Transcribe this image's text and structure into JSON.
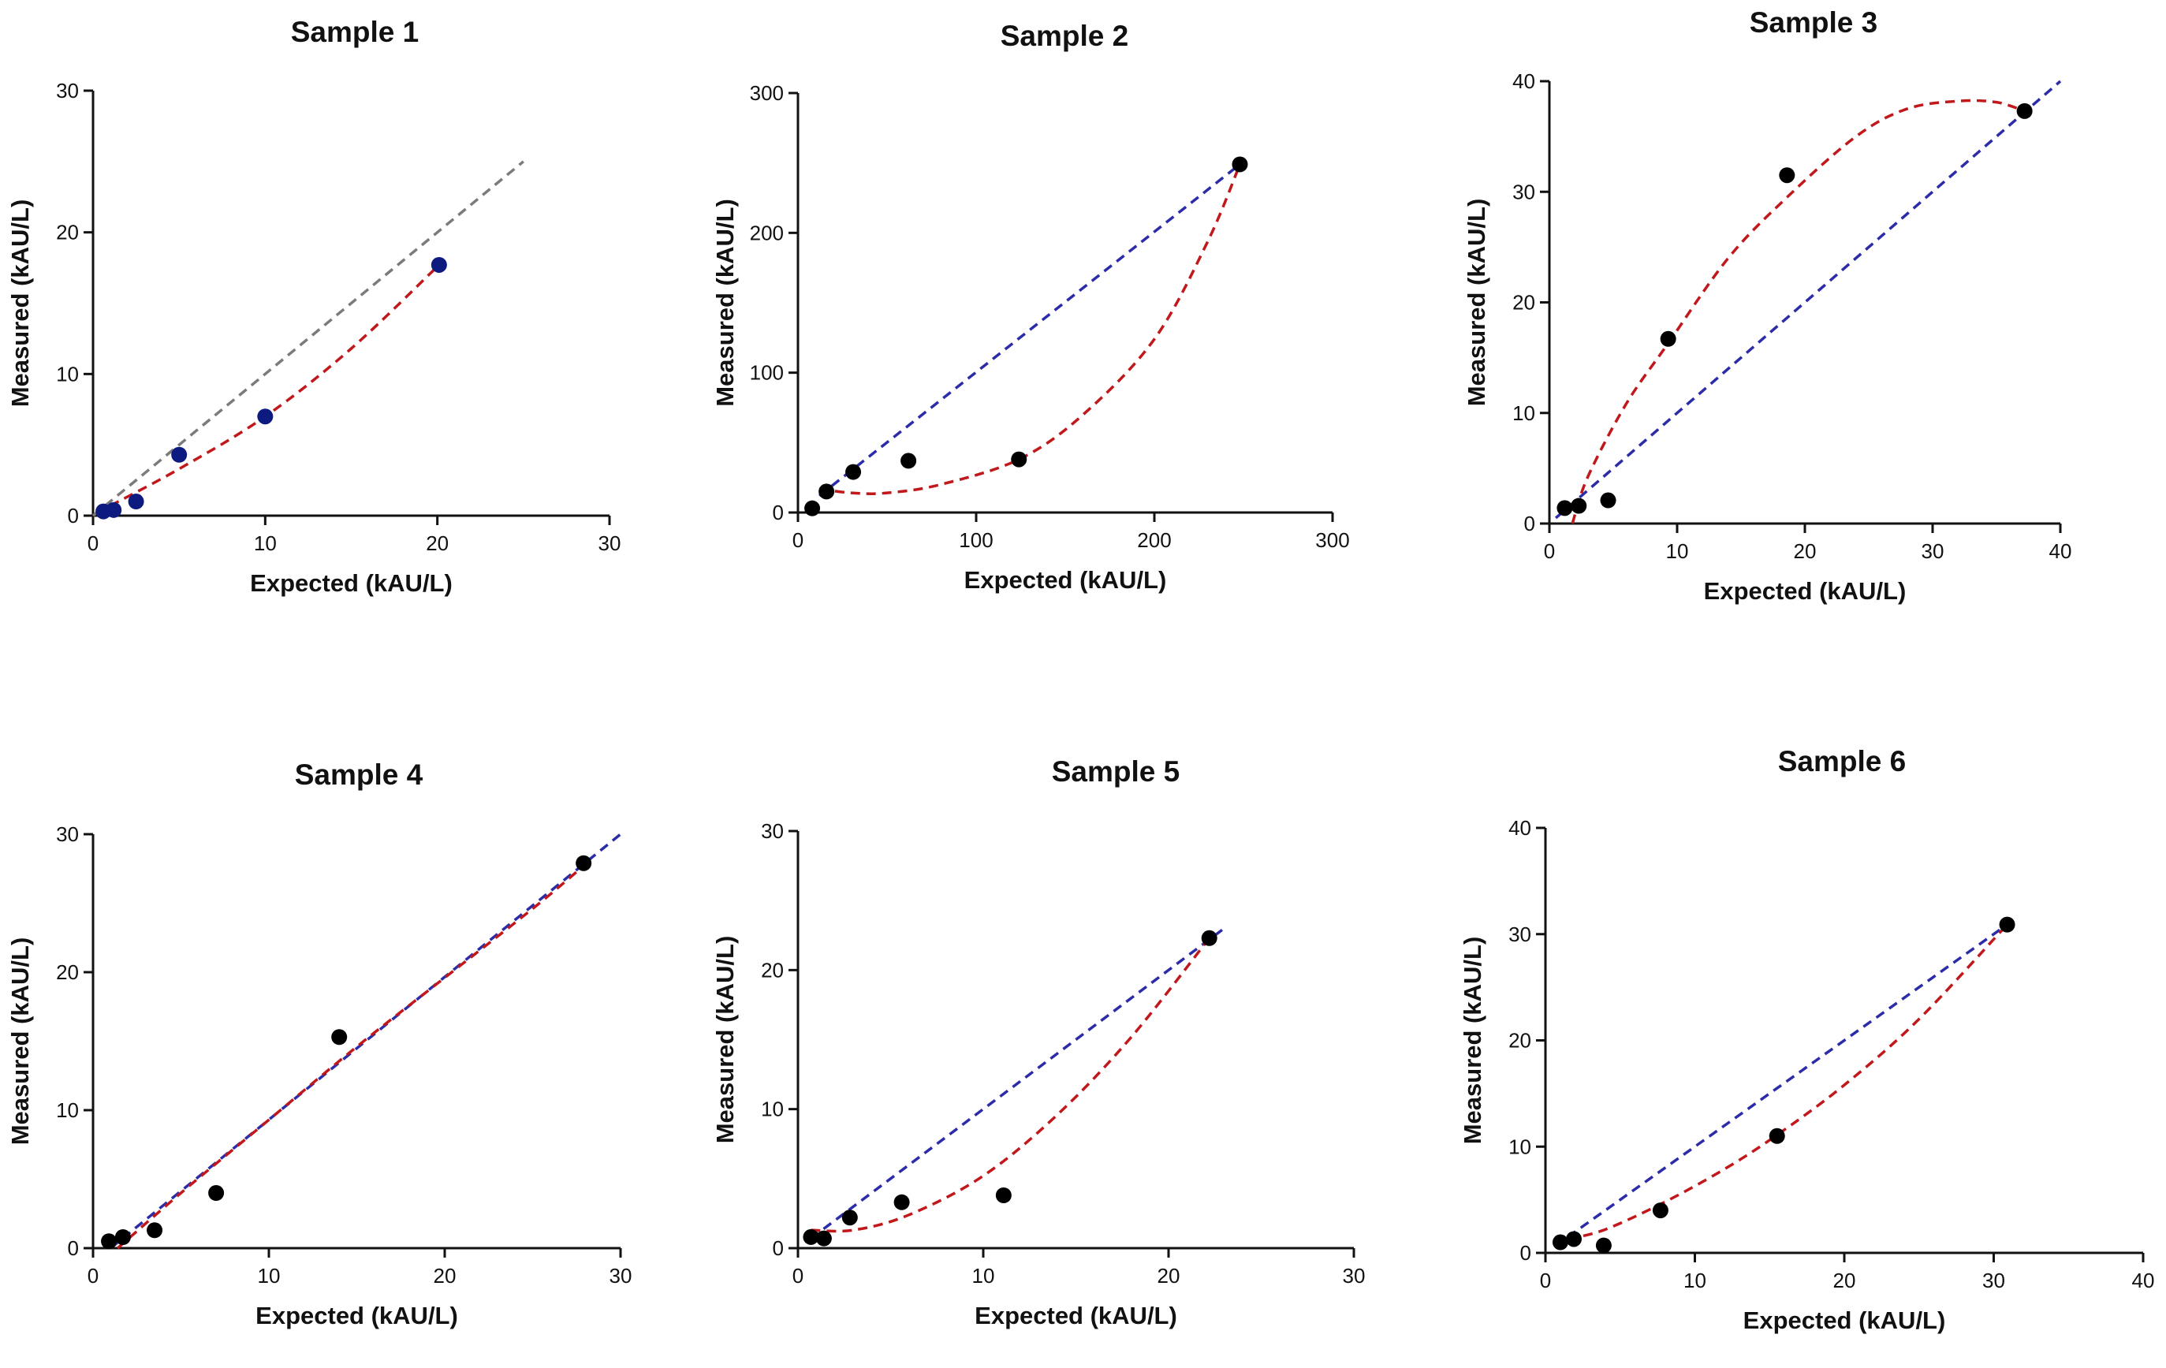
{
  "colors": {
    "fit_red": "#c0181b",
    "identity_blue": "#2c2ca8",
    "identity_gray": "#7b7b7b",
    "point_black": "#000000",
    "point_navy": "#0d1a7f",
    "axis": "#111111"
  },
  "chart_data": [
    {
      "type": "scatter",
      "title": "Sample 1",
      "xlabel": "Expected (kAU/L)",
      "ylabel": "Measured (kAU/L)",
      "xlim": [
        0,
        30
      ],
      "ylim": [
        0,
        30
      ],
      "xticks": [
        0,
        10,
        20,
        30
      ],
      "yticks": [
        0,
        10,
        20,
        30
      ],
      "points": [
        [
          0.6,
          0.3
        ],
        [
          1.2,
          0.4
        ],
        [
          2.5,
          1.0
        ],
        [
          5.0,
          4.3
        ],
        [
          10.0,
          7.0
        ],
        [
          20.1,
          17.7
        ]
      ],
      "point_color": "#0d1a7f",
      "identity_line": {
        "from": [
          0,
          0
        ],
        "to": [
          25,
          25
        ],
        "color": "#7b7b7b"
      },
      "fit_curve": {
        "points": [
          [
            1,
            0.7
          ],
          [
            5,
            3.3
          ],
          [
            10,
            7.0
          ],
          [
            15,
            11.8
          ],
          [
            20.1,
            17.7
          ]
        ],
        "color": "#c0181b"
      },
      "grid": false
    },
    {
      "type": "scatter",
      "title": "Sample 2",
      "xlabel": "Expected (kAU/L)",
      "ylabel": "Measured (kAU/L)",
      "xlim": [
        0,
        300
      ],
      "ylim": [
        0,
        300
      ],
      "xticks": [
        0,
        100,
        200,
        300
      ],
      "yticks": [
        0,
        100,
        200,
        300
      ],
      "points": [
        [
          8,
          3
        ],
        [
          16,
          15
        ],
        [
          31,
          29
        ],
        [
          62,
          37
        ],
        [
          124,
          38
        ],
        [
          248,
          249
        ]
      ],
      "point_color": "#000000",
      "identity_line": {
        "from": [
          12,
          12
        ],
        "to": [
          248,
          249
        ],
        "color": "#2c2ca8"
      },
      "fit_curve": {
        "points": [
          [
            12,
            17
          ],
          [
            30,
            14
          ],
          [
            50,
            14
          ],
          [
            80,
            20
          ],
          [
            124,
            38
          ],
          [
            160,
            70
          ],
          [
            200,
            124
          ],
          [
            230,
            194
          ],
          [
            248,
            249
          ]
        ],
        "color": "#c0181b"
      },
      "grid": false
    },
    {
      "type": "scatter",
      "title": "Sample 3",
      "xlabel": "Expected (kAU/L)",
      "ylabel": "Measured (kAU/L)",
      "xlim": [
        0,
        40
      ],
      "ylim": [
        0,
        40
      ],
      "xticks": [
        0,
        10,
        20,
        30,
        40
      ],
      "yticks": [
        0,
        10,
        20,
        30,
        40
      ],
      "points": [
        [
          1.2,
          1.4
        ],
        [
          2.3,
          1.6
        ],
        [
          4.6,
          2.1
        ],
        [
          9.3,
          16.7
        ],
        [
          18.6,
          31.5
        ],
        [
          37.2,
          37.3
        ]
      ],
      "point_color": "#000000",
      "identity_line": {
        "from": [
          0.5,
          0.5
        ],
        "to": [
          40,
          40
        ],
        "color": "#2c2ca8"
      },
      "fit_curve": {
        "points": [
          [
            1.8,
            0
          ],
          [
            3,
            4.2
          ],
          [
            6,
            10.8
          ],
          [
            9.3,
            16.3
          ],
          [
            14,
            24
          ],
          [
            18.6,
            29.5
          ],
          [
            24,
            35
          ],
          [
            28,
            37.5
          ],
          [
            32,
            38.2
          ],
          [
            35,
            38.1
          ],
          [
            37.2,
            37.3
          ]
        ],
        "color": "#c0181b"
      },
      "grid": false
    },
    {
      "type": "scatter",
      "title": "Sample 4",
      "xlabel": "Expected (kAU/L)",
      "ylabel": "Measured (kAU/L)",
      "xlim": [
        0,
        30
      ],
      "ylim": [
        0,
        30
      ],
      "xticks": [
        0,
        10,
        20,
        30
      ],
      "yticks": [
        0,
        10,
        20,
        30
      ],
      "points": [
        [
          0.9,
          0.5
        ],
        [
          1.7,
          0.8
        ],
        [
          3.5,
          1.3
        ],
        [
          7.0,
          4.0
        ],
        [
          14.0,
          15.3
        ],
        [
          27.9,
          27.9
        ]
      ],
      "point_color": "#000000",
      "identity_line": {
        "from": [
          1,
          0
        ],
        "to": [
          30,
          30
        ],
        "color": "#2c2ca8"
      },
      "fit_curve": {
        "points": [
          [
            1.4,
            0
          ],
          [
            5,
            4
          ],
          [
            10,
            9.3
          ],
          [
            15,
            14.6
          ],
          [
            20,
            19.6
          ],
          [
            25,
            24.6
          ],
          [
            27.9,
            27.7
          ]
        ],
        "color": "#c0181b"
      },
      "grid": false
    },
    {
      "type": "scatter",
      "title": "Sample 5",
      "xlabel": "Expected (kAU/L)",
      "ylabel": "Measured (kAU/L)",
      "xlim": [
        0,
        30
      ],
      "ylim": [
        0,
        30
      ],
      "xticks": [
        0,
        10,
        20,
        30
      ],
      "yticks": [
        0,
        10,
        20,
        30
      ],
      "points": [
        [
          0.7,
          0.8
        ],
        [
          1.4,
          0.7
        ],
        [
          2.8,
          2.2
        ],
        [
          5.6,
          3.3
        ],
        [
          11.1,
          3.8
        ],
        [
          22.2,
          22.3
        ]
      ],
      "point_color": "#000000",
      "identity_line": {
        "from": [
          0.7,
          0.7
        ],
        "to": [
          23,
          23
        ],
        "color": "#2c2ca8"
      },
      "fit_curve": {
        "points": [
          [
            0.7,
            1.3
          ],
          [
            3,
            1.3
          ],
          [
            6,
            2.4
          ],
          [
            10,
            5.2
          ],
          [
            14,
            9.6
          ],
          [
            18,
            15.2
          ],
          [
            22.2,
            22.3
          ]
        ],
        "color": "#c0181b"
      },
      "grid": false
    },
    {
      "type": "scatter",
      "title": "Sample 6",
      "xlabel": "Expected (kAU/L)",
      "ylabel": "Measured (kAU/L)",
      "xlim": [
        0,
        40
      ],
      "ylim": [
        0,
        40
      ],
      "xticks": [
        0,
        10,
        20,
        30,
        40
      ],
      "yticks": [
        0,
        10,
        20,
        30,
        40
      ],
      "points": [
        [
          1.0,
          1.0
        ],
        [
          1.9,
          1.3
        ],
        [
          3.9,
          0.7
        ],
        [
          7.7,
          4.0
        ],
        [
          15.5,
          11.0
        ],
        [
          30.9,
          30.9
        ]
      ],
      "point_color": "#000000",
      "identity_line": {
        "from": [
          1.5,
          1.5
        ],
        "to": [
          30.9,
          30.9
        ],
        "color": "#2c2ca8"
      },
      "fit_curve": {
        "points": [
          [
            1.5,
            1.3
          ],
          [
            4,
            2.2
          ],
          [
            8,
            4.8
          ],
          [
            12,
            7.9
          ],
          [
            15.5,
            11.1
          ],
          [
            20,
            15.8
          ],
          [
            25,
            22
          ],
          [
            30.9,
            30.9
          ]
        ],
        "color": "#c0181b"
      },
      "grid": false
    }
  ]
}
